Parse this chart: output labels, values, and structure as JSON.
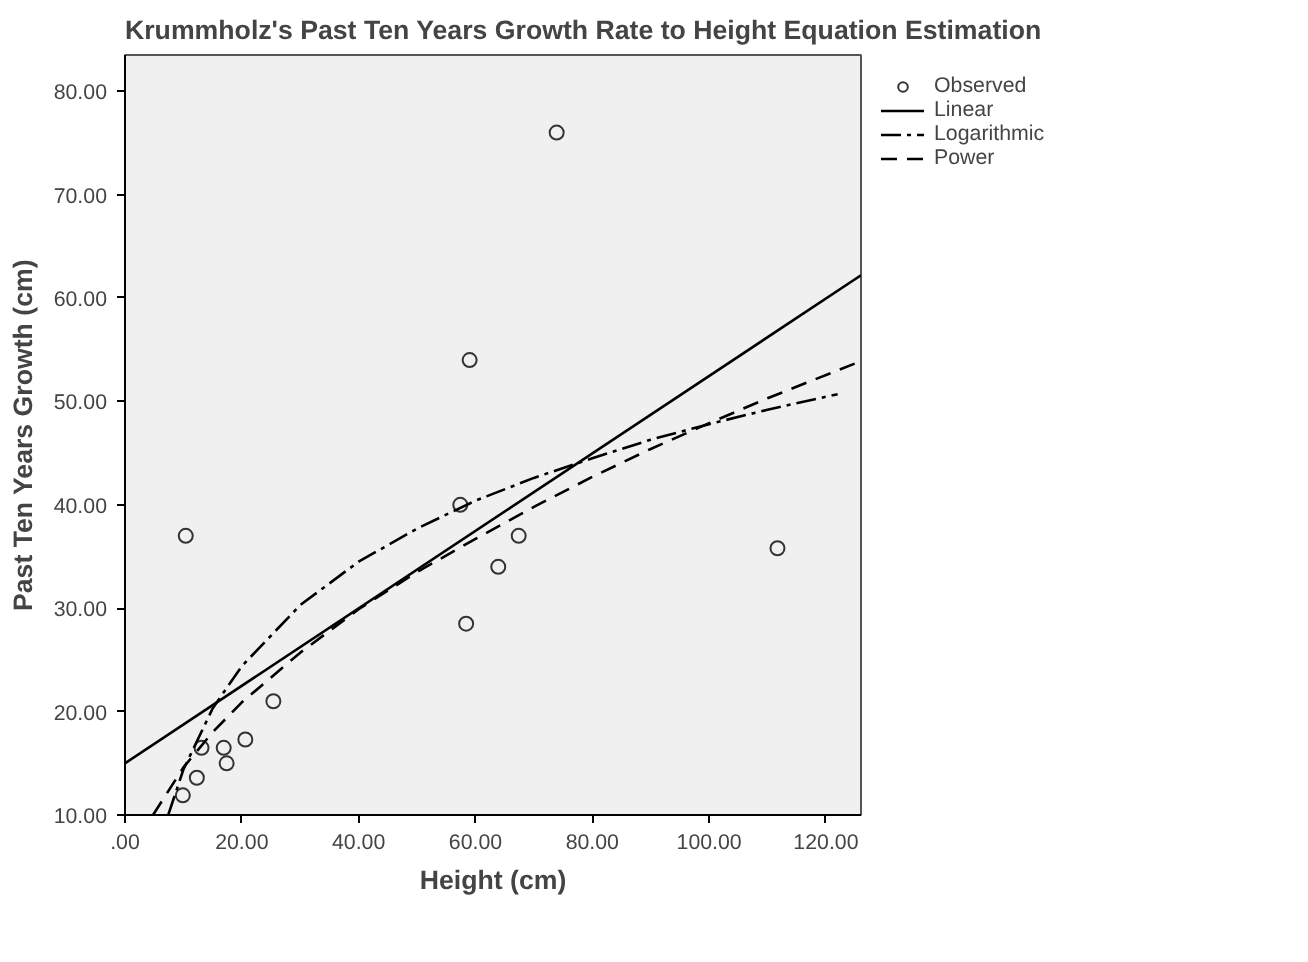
{
  "chart_data": {
    "type": "scatter",
    "title": "Krummholz's Past Ten Years Growth Rate to Height Equation Estimation",
    "xlabel": "Height (cm)",
    "ylabel": "Past Ten Years Growth (cm)",
    "xlim": [
      0,
      126
    ],
    "ylim": [
      10,
      83.5
    ],
    "xticks": [
      {
        "value": 0,
        "label": ".00"
      },
      {
        "value": 20,
        "label": "20.00"
      },
      {
        "value": 40,
        "label": "40.00"
      },
      {
        "value": 60,
        "label": "60.00"
      },
      {
        "value": 80,
        "label": "80.00"
      },
      {
        "value": 100,
        "label": "100.00"
      },
      {
        "value": 120,
        "label": "120.00"
      }
    ],
    "yticks": [
      {
        "value": 10,
        "label": "10.00"
      },
      {
        "value": 20,
        "label": "20.00"
      },
      {
        "value": 30,
        "label": "30.00"
      },
      {
        "value": 40,
        "label": "40.00"
      },
      {
        "value": 50,
        "label": "50.00"
      },
      {
        "value": 60,
        "label": "60.00"
      },
      {
        "value": 70,
        "label": "70.00"
      },
      {
        "value": 80,
        "label": "80.00"
      }
    ],
    "grid": false,
    "legend": "top right",
    "series": [
      {
        "name": "Observed",
        "marker": "circle",
        "color": "#333333",
        "x": [
          9.9,
          10.4,
          12.3,
          13.1,
          16.9,
          17.4,
          20.6,
          25.4,
          57.4,
          59.0,
          58.4,
          63.9,
          67.4,
          73.9,
          111.7
        ],
        "values": [
          11.9,
          37.0,
          13.6,
          16.5,
          16.5,
          15.0,
          17.3,
          21.0,
          40.0,
          54.0,
          28.5,
          34.0,
          37.0,
          76.0,
          35.8
        ]
      },
      {
        "name": "Linear",
        "type": "line",
        "line_style": "solid",
        "color": "#000000",
        "x": [
          0,
          126
        ],
        "values": [
          15.0,
          62.2
        ]
      },
      {
        "name": "Logarithmic",
        "type": "line",
        "line_style": "dashdot",
        "color": "#000000",
        "x": [
          7.4,
          10,
          15,
          20,
          30,
          40,
          50,
          60,
          70,
          80,
          90,
          100,
          110,
          122
        ],
        "values": [
          10.0,
          14.4,
          20.3,
          24.4,
          30.3,
          34.5,
          37.7,
          40.4,
          42.6,
          44.5,
          46.3,
          47.8,
          49.2,
          50.7
        ]
      },
      {
        "name": "Power",
        "type": "line",
        "line_style": "dashed",
        "color": "#000000",
        "x": [
          4.8,
          10,
          15,
          20,
          30,
          40,
          50,
          60,
          70,
          80,
          90,
          100,
          110,
          126
        ],
        "values": [
          10.0,
          14.6,
          18.0,
          20.9,
          25.7,
          29.9,
          33.5,
          36.7,
          39.8,
          42.7,
          45.4,
          47.9,
          50.3,
          53.9
        ]
      }
    ]
  }
}
